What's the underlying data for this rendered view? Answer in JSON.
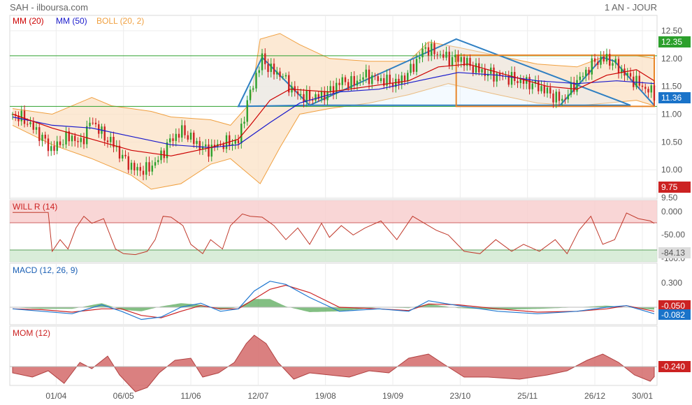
{
  "header": {
    "title": "SAH - ilboursa.com",
    "range": "1 AN - JOUR"
  },
  "colors": {
    "ma20": "#cc0000",
    "ma50": "#1a1acc",
    "boll": "#f0a040",
    "bollFill": "#fbe1c6",
    "up": "#2ca02c",
    "down": "#cc2222",
    "pattern": "#2e7fc2",
    "rect": "#e8872a",
    "support": "#2ea02e",
    "will": "#c0392b",
    "macd": "#1f77d0",
    "signal": "#cc2222",
    "hist": "#5aaa5a",
    "mom": "#d46a6a"
  },
  "chart_data": [
    {
      "type": "candlestick",
      "panel": "price",
      "legend": [
        {
          "label": "MM (20)",
          "color": "#cc0000"
        },
        {
          "label": "MM (50)",
          "color": "#1a1acc"
        },
        {
          "label": "BOLL (20, 2)",
          "color": "#f0a040"
        }
      ],
      "ylim": [
        9.5,
        12.5
      ],
      "yticks": [
        "12.50",
        "12.00",
        "11.50",
        "11.00",
        "10.50",
        "10.00",
        "9.50"
      ],
      "xticks": [
        "01/04",
        "06/05",
        "11/06",
        "12/07",
        "19/08",
        "19/09",
        "23/10",
        "25/11",
        "26/12",
        "30/01"
      ],
      "horizontal_lines": [
        12.05,
        11.14
      ],
      "badges": [
        {
          "value": "12.35",
          "color": "#2ca02c"
        },
        {
          "value": "11.36",
          "color": "#1a73c9"
        },
        {
          "value": "9.75",
          "color": "#cc2222"
        }
      ],
      "close_path": [
        [
          0,
          11.0
        ],
        [
          6,
          10.9
        ],
        [
          12,
          10.7
        ],
        [
          20,
          10.35
        ],
        [
          26,
          10.55
        ],
        [
          30,
          10.6
        ],
        [
          34,
          10.45
        ],
        [
          40,
          10.9
        ],
        [
          46,
          10.6
        ],
        [
          50,
          10.5
        ],
        [
          56,
          10.2
        ],
        [
          62,
          10.0
        ],
        [
          68,
          10.0
        ],
        [
          74,
          10.2
        ],
        [
          80,
          10.55
        ],
        [
          86,
          10.7
        ],
        [
          92,
          10.5
        ],
        [
          98,
          10.35
        ],
        [
          104,
          10.45
        ],
        [
          110,
          10.5
        ],
        [
          114,
          10.5
        ],
        [
          118,
          11.15
        ],
        [
          122,
          11.6
        ],
        [
          126,
          12.0
        ],
        [
          130,
          11.8
        ],
        [
          136,
          11.7
        ],
        [
          142,
          11.4
        ],
        [
          148,
          11.3
        ],
        [
          154,
          11.3
        ],
        [
          160,
          11.4
        ],
        [
          166,
          11.6
        ],
        [
          172,
          11.55
        ],
        [
          178,
          11.7
        ],
        [
          182,
          11.65
        ],
        [
          188,
          11.6
        ],
        [
          194,
          11.55
        ],
        [
          200,
          11.75
        ],
        [
          204,
          11.95
        ],
        [
          208,
          12.2
        ],
        [
          214,
          12.1
        ],
        [
          220,
          12.0
        ],
        [
          226,
          12.0
        ],
        [
          232,
          11.85
        ],
        [
          238,
          11.75
        ],
        [
          244,
          11.7
        ],
        [
          250,
          11.65
        ],
        [
          256,
          11.6
        ],
        [
          262,
          11.55
        ],
        [
          268,
          11.45
        ],
        [
          274,
          11.3
        ],
        [
          278,
          11.25
        ],
        [
          284,
          11.55
        ],
        [
          288,
          11.7
        ],
        [
          294,
          11.95
        ],
        [
          300,
          12.0
        ],
        [
          304,
          11.9
        ],
        [
          310,
          11.7
        ],
        [
          316,
          11.55
        ],
        [
          320,
          11.45
        ],
        [
          324,
          11.36
        ]
      ],
      "ma20_path": [
        [
          0,
          11.0
        ],
        [
          20,
          10.75
        ],
        [
          40,
          10.55
        ],
        [
          60,
          10.35
        ],
        [
          80,
          10.25
        ],
        [
          100,
          10.4
        ],
        [
          114,
          10.55
        ],
        [
          120,
          10.8
        ],
        [
          130,
          11.25
        ],
        [
          140,
          11.45
        ],
        [
          160,
          11.4
        ],
        [
          180,
          11.5
        ],
        [
          200,
          11.6
        ],
        [
          215,
          11.85
        ],
        [
          230,
          11.9
        ],
        [
          250,
          11.7
        ],
        [
          270,
          11.5
        ],
        [
          285,
          11.45
        ],
        [
          300,
          11.7
        ],
        [
          315,
          11.8
        ],
        [
          324,
          11.6
        ]
      ],
      "ma50_path": [
        [
          0,
          10.95
        ],
        [
          20,
          10.8
        ],
        [
          40,
          10.75
        ],
        [
          60,
          10.6
        ],
        [
          80,
          10.45
        ],
        [
          100,
          10.4
        ],
        [
          114,
          10.45
        ],
        [
          130,
          10.85
        ],
        [
          145,
          11.2
        ],
        [
          165,
          11.4
        ],
        [
          185,
          11.45
        ],
        [
          205,
          11.6
        ],
        [
          225,
          11.75
        ],
        [
          245,
          11.7
        ],
        [
          265,
          11.6
        ],
        [
          285,
          11.55
        ],
        [
          305,
          11.6
        ],
        [
          324,
          11.55
        ]
      ],
      "boll_upper_path": [
        [
          0,
          11.1
        ],
        [
          20,
          11.0
        ],
        [
          40,
          11.3
        ],
        [
          50,
          11.15
        ],
        [
          60,
          11.1
        ],
        [
          70,
          11.05
        ],
        [
          80,
          10.95
        ],
        [
          100,
          10.9
        ],
        [
          110,
          10.8
        ],
        [
          120,
          11.2
        ],
        [
          125,
          12.35
        ],
        [
          135,
          12.45
        ],
        [
          145,
          12.25
        ],
        [
          160,
          12.0
        ],
        [
          180,
          11.95
        ],
        [
          200,
          11.95
        ],
        [
          210,
          12.3
        ],
        [
          225,
          12.2
        ],
        [
          245,
          12.05
        ],
        [
          265,
          11.9
        ],
        [
          285,
          11.85
        ],
        [
          300,
          12.05
        ],
        [
          315,
          12.05
        ],
        [
          324,
          12.0
        ]
      ],
      "boll_lower_path": [
        [
          0,
          10.8
        ],
        [
          20,
          10.45
        ],
        [
          40,
          10.2
        ],
        [
          60,
          9.9
        ],
        [
          70,
          9.65
        ],
        [
          85,
          9.75
        ],
        [
          100,
          10.1
        ],
        [
          110,
          10.2
        ],
        [
          120,
          9.9
        ],
        [
          125,
          9.75
        ],
        [
          135,
          10.4
        ],
        [
          145,
          11.0
        ],
        [
          160,
          11.1
        ],
        [
          180,
          11.2
        ],
        [
          200,
          11.35
        ],
        [
          220,
          11.55
        ],
        [
          245,
          11.35
        ],
        [
          265,
          11.2
        ],
        [
          285,
          11.15
        ],
        [
          300,
          11.2
        ],
        [
          315,
          11.25
        ],
        [
          324,
          11.15
        ]
      ]
    },
    {
      "type": "line",
      "panel": "williams",
      "title": "WILL R (14)",
      "ylim": [
        -100,
        0
      ],
      "yticks": [
        "0.000",
        "-50.00",
        "-100.0"
      ],
      "last_value": "-84.13",
      "series_path": [
        [
          0,
          -2
        ],
        [
          18,
          -2
        ],
        [
          20,
          -85
        ],
        [
          24,
          -60
        ],
        [
          28,
          -80
        ],
        [
          32,
          -35
        ],
        [
          36,
          -10
        ],
        [
          40,
          -25
        ],
        [
          46,
          -15
        ],
        [
          52,
          -80
        ],
        [
          56,
          -90
        ],
        [
          62,
          -92
        ],
        [
          68,
          -85
        ],
        [
          72,
          -60
        ],
        [
          76,
          -10
        ],
        [
          80,
          -12
        ],
        [
          86,
          -30
        ],
        [
          90,
          -70
        ],
        [
          96,
          -90
        ],
        [
          100,
          -60
        ],
        [
          106,
          -80
        ],
        [
          110,
          -30
        ],
        [
          116,
          -5
        ],
        [
          120,
          -10
        ],
        [
          126,
          -12
        ],
        [
          132,
          -30
        ],
        [
          138,
          -60
        ],
        [
          144,
          -35
        ],
        [
          150,
          -70
        ],
        [
          156,
          -25
        ],
        [
          160,
          -55
        ],
        [
          166,
          -30
        ],
        [
          172,
          -50
        ],
        [
          178,
          -35
        ],
        [
          186,
          -20
        ],
        [
          194,
          -60
        ],
        [
          202,
          -10
        ],
        [
          208,
          -25
        ],
        [
          214,
          -40
        ],
        [
          220,
          -50
        ],
        [
          228,
          -85
        ],
        [
          236,
          -90
        ],
        [
          244,
          -60
        ],
        [
          252,
          -85
        ],
        [
          258,
          -70
        ],
        [
          266,
          -85
        ],
        [
          274,
          -60
        ],
        [
          280,
          -90
        ],
        [
          286,
          -40
        ],
        [
          292,
          -10
        ],
        [
          298,
          -70
        ],
        [
          304,
          -60
        ],
        [
          310,
          -3
        ],
        [
          316,
          -15
        ],
        [
          322,
          -20
        ],
        [
          324,
          -25
        ]
      ],
      "tail_path": [
        [
          300,
          -85
        ],
        [
          304,
          -95
        ],
        [
          312,
          -95
        ],
        [
          320,
          -92
        ],
        [
          324,
          -84
        ]
      ]
    },
    {
      "type": "line",
      "panel": "macd",
      "title": "MACD (12, 26, 9)",
      "ylim": [
        -0.25,
        0.4
      ],
      "yticks": [
        "0.300"
      ],
      "last_values": [
        {
          "value": "-0.050",
          "color": "#cc2222"
        },
        {
          "value": "-0.082",
          "color": "#1a73c9"
        }
      ],
      "macd_path": [
        [
          0,
          -0.02
        ],
        [
          15,
          -0.05
        ],
        [
          30,
          -0.08
        ],
        [
          45,
          0.03
        ],
        [
          55,
          -0.05
        ],
        [
          65,
          -0.15
        ],
        [
          75,
          -0.12
        ],
        [
          85,
          0.0
        ],
        [
          95,
          0.05
        ],
        [
          105,
          -0.05
        ],
        [
          114,
          -0.02
        ],
        [
          122,
          0.2
        ],
        [
          130,
          0.32
        ],
        [
          138,
          0.28
        ],
        [
          150,
          0.12
        ],
        [
          165,
          -0.05
        ],
        [
          185,
          -0.02
        ],
        [
          200,
          -0.05
        ],
        [
          210,
          0.08
        ],
        [
          225,
          0.02
        ],
        [
          245,
          -0.05
        ],
        [
          265,
          -0.08
        ],
        [
          285,
          -0.05
        ],
        [
          300,
          0.0
        ],
        [
          310,
          0.02
        ],
        [
          324,
          -0.08
        ]
      ],
      "signal_path": [
        [
          0,
          -0.02
        ],
        [
          15,
          -0.03
        ],
        [
          30,
          -0.06
        ],
        [
          45,
          -0.02
        ],
        [
          55,
          -0.02
        ],
        [
          65,
          -0.1
        ],
        [
          75,
          -0.13
        ],
        [
          85,
          -0.05
        ],
        [
          95,
          0.02
        ],
        [
          105,
          -0.02
        ],
        [
          114,
          -0.02
        ],
        [
          122,
          0.1
        ],
        [
          130,
          0.22
        ],
        [
          138,
          0.27
        ],
        [
          150,
          0.18
        ],
        [
          165,
          0.0
        ],
        [
          185,
          -0.02
        ],
        [
          200,
          -0.04
        ],
        [
          210,
          0.04
        ],
        [
          225,
          0.03
        ],
        [
          245,
          -0.02
        ],
        [
          265,
          -0.06
        ],
        [
          285,
          -0.05
        ],
        [
          300,
          -0.02
        ],
        [
          310,
          0.02
        ],
        [
          324,
          -0.05
        ]
      ]
    },
    {
      "type": "area",
      "panel": "momentum",
      "title": "MOM (12)",
      "ylim": [
        -0.8,
        0.8
      ],
      "last_value": "-0.240",
      "series_path": [
        [
          0,
          -0.15
        ],
        [
          10,
          -0.25
        ],
        [
          18,
          -0.1
        ],
        [
          26,
          -0.4
        ],
        [
          34,
          0.1
        ],
        [
          40,
          -0.05
        ],
        [
          48,
          0.25
        ],
        [
          54,
          -0.2
        ],
        [
          62,
          -0.6
        ],
        [
          68,
          -0.5
        ],
        [
          74,
          -0.15
        ],
        [
          82,
          0.15
        ],
        [
          90,
          0.2
        ],
        [
          96,
          -0.25
        ],
        [
          104,
          -0.15
        ],
        [
          112,
          0.1
        ],
        [
          118,
          0.55
        ],
        [
          122,
          0.75
        ],
        [
          128,
          0.55
        ],
        [
          134,
          0.1
        ],
        [
          142,
          -0.3
        ],
        [
          150,
          -0.15
        ],
        [
          160,
          -0.2
        ],
        [
          170,
          -0.25
        ],
        [
          180,
          -0.1
        ],
        [
          190,
          -0.15
        ],
        [
          200,
          0.2
        ],
        [
          210,
          0.3
        ],
        [
          218,
          0.05
        ],
        [
          228,
          -0.25
        ],
        [
          240,
          -0.25
        ],
        [
          256,
          -0.3
        ],
        [
          270,
          -0.2
        ],
        [
          280,
          -0.1
        ],
        [
          290,
          0.15
        ],
        [
          298,
          0.3
        ],
        [
          306,
          0.1
        ],
        [
          314,
          -0.2
        ],
        [
          322,
          -0.35
        ],
        [
          324,
          -0.24
        ]
      ]
    }
  ]
}
